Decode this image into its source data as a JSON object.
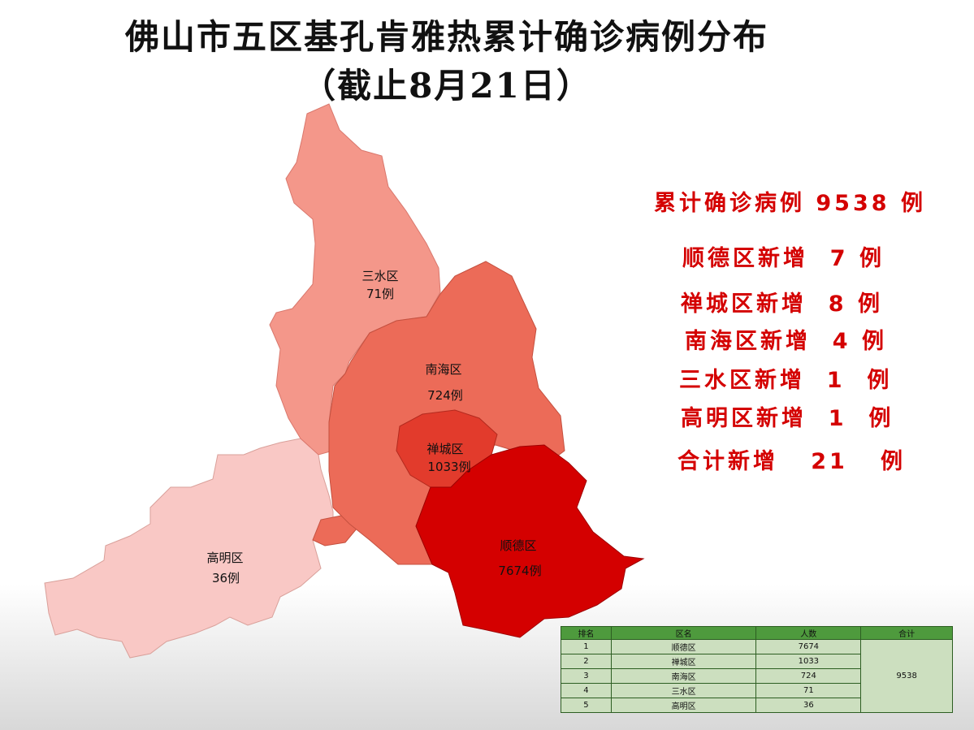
{
  "title": {
    "line1": "佛山市五区基孔肯雅热累计确诊病例分布",
    "line2": "（截止8月21日）"
  },
  "colors": {
    "shunde": "#d40000",
    "chancheng": "#e23b2c",
    "nanhai": "#ec6b58",
    "sanshui": "#f4978a",
    "gaoming": "#f9c8c5",
    "stat_text": "#d40000",
    "table_header": "#4e9a3d",
    "table_body": "#ccdfbf"
  },
  "regions": {
    "sanshui": {
      "name": "三水区",
      "count": "71例"
    },
    "nanhai": {
      "name": "南海区",
      "count": "724例"
    },
    "chancheng": {
      "name": "禅城区",
      "count": "1033例"
    },
    "shunde": {
      "name": "顺德区",
      "count": "7674例"
    },
    "gaoming": {
      "name": "高明区",
      "count": "36例"
    }
  },
  "stats": {
    "total": "累计确诊病例 9538 例",
    "shunde_new": "顺德区新增  7 例",
    "chancheng_new": "禅城区新增  8 例",
    "nanhai_new": "南海区新增  4 例",
    "sanshui_new": "三水区新增  1  例",
    "gaoming_new": "高明区新增  1  例",
    "sum_new": "合计新增   21   例"
  },
  "table": {
    "headers": [
      "排名",
      "区名",
      "人数",
      "合计"
    ],
    "rows": [
      {
        "rank": "1",
        "district": "顺德区",
        "count": "7674"
      },
      {
        "rank": "2",
        "district": "禅城区",
        "count": "1033"
      },
      {
        "rank": "3",
        "district": "南海区",
        "count": "724"
      },
      {
        "rank": "4",
        "district": "三水区",
        "count": "71"
      },
      {
        "rank": "5",
        "district": "高明区",
        "count": "36"
      }
    ],
    "total": "9538"
  }
}
